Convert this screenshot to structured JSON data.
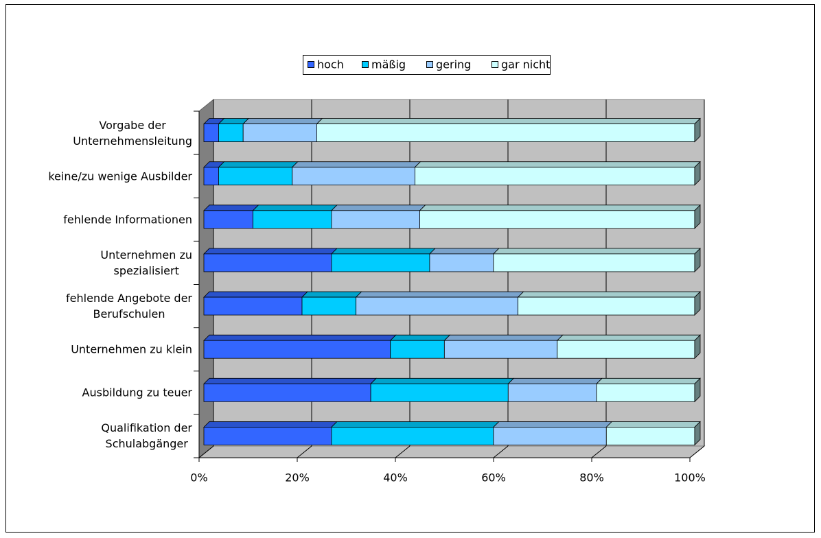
{
  "chart_data": {
    "type": "stacked-bar-3d",
    "categories": [
      "Vorgabe der\nUnternehmensleitung",
      "keine/zu wenige Ausbilder",
      "fehlende Informationen",
      "Unternehmen zu\nspezialisiert",
      "fehlende Angebote der\nBerufschulen",
      "Unternehmen zu klein",
      "Ausbildung zu teuer",
      "Qualifikation der\nSchulabgänger"
    ],
    "series": [
      {
        "name": "hoch",
        "color": "#3366ff",
        "values": [
          3,
          3,
          10,
          26,
          20,
          38,
          34,
          26
        ]
      },
      {
        "name": "mäßig",
        "color": "#00ccff",
        "values": [
          5,
          15,
          16,
          20,
          11,
          11,
          28,
          33
        ]
      },
      {
        "name": "gering",
        "color": "#99ccff",
        "values": [
          15,
          25,
          18,
          13,
          33,
          23,
          18,
          23
        ]
      },
      {
        "name": "gar nicht",
        "color": "#ccffff",
        "values": [
          77,
          57,
          56,
          41,
          36,
          28,
          20,
          18
        ]
      }
    ],
    "xlim": [
      0,
      100
    ],
    "xticks": [
      {
        "value": 0,
        "label": "0%"
      },
      {
        "value": 20,
        "label": "20%"
      },
      {
        "value": 40,
        "label": "40%"
      },
      {
        "value": 60,
        "label": "60%"
      },
      {
        "value": 80,
        "label": "80%"
      },
      {
        "value": 100,
        "label": "100%"
      }
    ],
    "grid": true,
    "legend": "top"
  }
}
